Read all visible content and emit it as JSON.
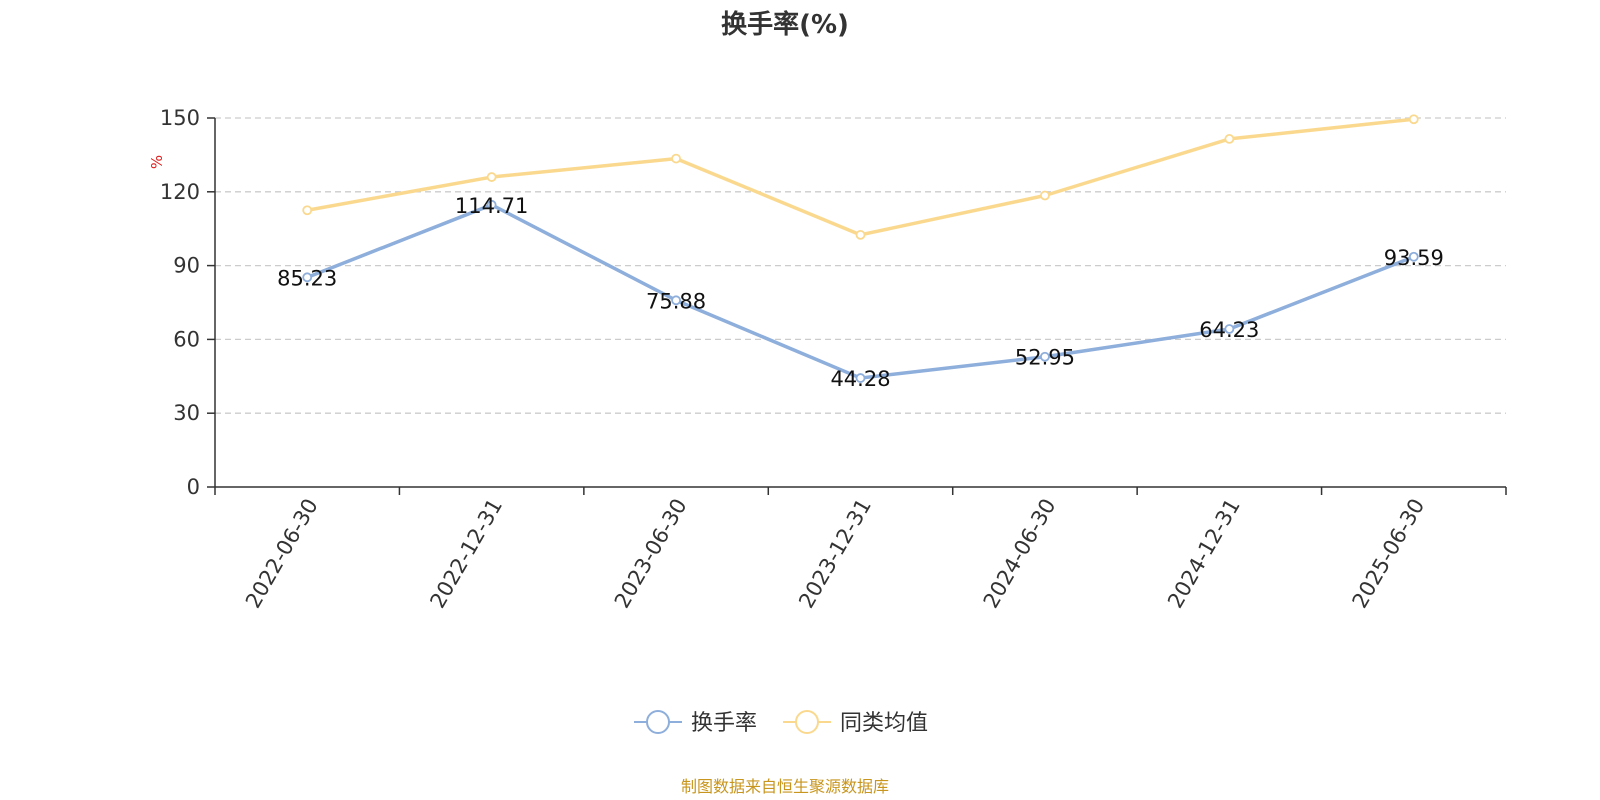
{
  "chart_data": {
    "type": "line",
    "title": "换手率(%)",
    "ylabel": "%",
    "xlabel": "",
    "x": [
      "2022-06-30",
      "2022-12-31",
      "2023-06-30",
      "2023-12-31",
      "2024-06-30",
      "2024-12-31",
      "2025-06-30"
    ],
    "ylim": [
      0,
      150
    ],
    "yticks": [
      0,
      30,
      60,
      90,
      120,
      150
    ],
    "ytick_labels": [
      "0",
      "30",
      "60",
      "90",
      "120",
      "150"
    ],
    "grid": "horizontal-dashed",
    "legend_position": "bottom-center",
    "series": [
      {
        "name": "换手率",
        "values": [
          85.23,
          114.71,
          75.88,
          44.28,
          52.95,
          64.23,
          93.59
        ],
        "labels": [
          "85.23",
          "114.71",
          "75.88",
          "44.28",
          "52.95",
          "64.23",
          "93.59"
        ],
        "color": "#8eaedb"
      },
      {
        "name": "同类均值",
        "values": [
          112.5,
          126,
          133.5,
          102.5,
          118.5,
          141.5,
          149.5
        ],
        "color": "#fad98f"
      }
    ],
    "source": "制图数据来自恒生聚源数据库"
  }
}
